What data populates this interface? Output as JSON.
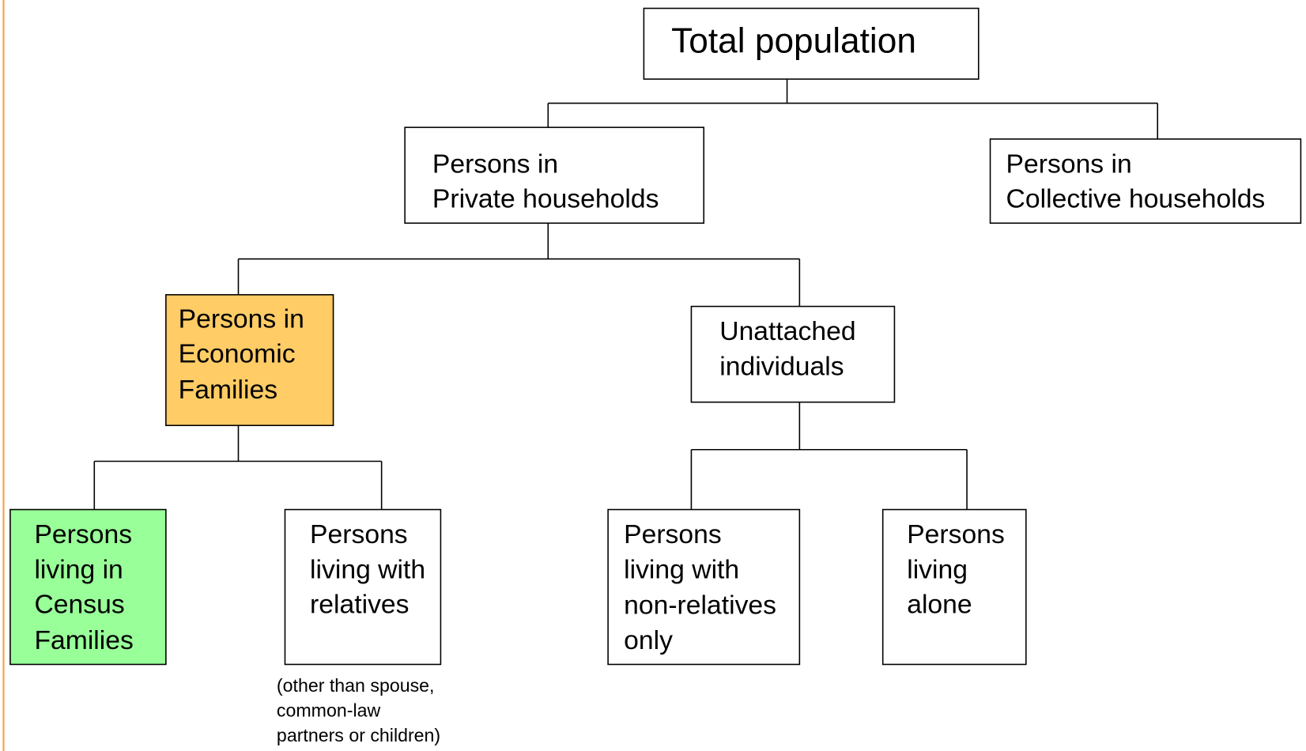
{
  "nodes": [
    {
      "id": "total",
      "lines": [
        "Total population"
      ]
    },
    {
      "id": "private",
      "lines": [
        "Persons in",
        "Private households"
      ]
    },
    {
      "id": "collective",
      "lines": [
        "Persons in",
        "Collective households"
      ]
    },
    {
      "id": "economic",
      "lines": [
        "Persons in",
        "Economic",
        "Families"
      ]
    },
    {
      "id": "unattached",
      "lines": [
        "Unattached",
        "individuals"
      ]
    },
    {
      "id": "census",
      "lines": [
        "Persons",
        "living in",
        "Census",
        "Families"
      ]
    },
    {
      "id": "relatives",
      "lines": [
        "Persons",
        "living with",
        "relatives"
      ]
    },
    {
      "id": "nonrelatives",
      "lines": [
        "Persons",
        "living with",
        "non-relatives",
        "only"
      ]
    },
    {
      "id": "alone",
      "lines": [
        "Persons",
        "living",
        "alone"
      ]
    }
  ],
  "note": [
    "(other than spouse,",
    "common-law",
    "partners or children)"
  ]
}
